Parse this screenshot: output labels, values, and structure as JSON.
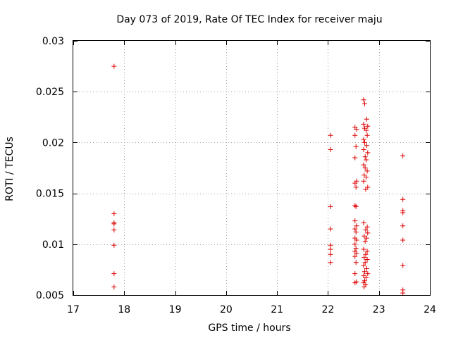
{
  "chart_data": {
    "type": "scatter",
    "title": "Day 073 of 2019, Rate Of TEC Index for receiver maju",
    "xlabel": "GPS time / hours",
    "ylabel": "ROTI / TECUs",
    "xlim": [
      17,
      24
    ],
    "ylim": [
      0.005,
      0.03
    ],
    "xticks": [
      17,
      18,
      19,
      20,
      21,
      22,
      23,
      24
    ],
    "yticks": [
      0.005,
      0.01,
      0.015,
      0.02,
      0.025,
      0.03
    ],
    "xtick_labels": [
      "17",
      "18",
      "19",
      "20",
      "21",
      "22",
      "23",
      "24"
    ],
    "ytick_labels": [
      "0.005",
      "0.01",
      "0.015",
      "0.02",
      "0.025",
      "0.03"
    ],
    "grid": true,
    "marker": "+",
    "color": "#dd0000",
    "series": [
      {
        "name": "ROTI",
        "points": [
          [
            17.8,
            0.0275
          ],
          [
            17.8,
            0.013
          ],
          [
            17.8,
            0.0121
          ],
          [
            17.8,
            0.012
          ],
          [
            17.8,
            0.0114
          ],
          [
            17.8,
            0.0099
          ],
          [
            17.8,
            0.0071
          ],
          [
            17.8,
            0.0058
          ],
          [
            22.05,
            0.0207
          ],
          [
            22.05,
            0.0193
          ],
          [
            22.05,
            0.0137
          ],
          [
            22.05,
            0.0115
          ],
          [
            22.05,
            0.0099
          ],
          [
            22.05,
            0.0095
          ],
          [
            22.05,
            0.009
          ],
          [
            22.05,
            0.0082
          ],
          [
            22.53,
            0.0215
          ],
          [
            22.56,
            0.0213
          ],
          [
            22.53,
            0.0207
          ],
          [
            22.55,
            0.0196
          ],
          [
            22.53,
            0.0185
          ],
          [
            22.56,
            0.0162
          ],
          [
            22.53,
            0.016
          ],
          [
            22.55,
            0.0156
          ],
          [
            22.53,
            0.0138
          ],
          [
            22.55,
            0.0137
          ],
          [
            22.53,
            0.0123
          ],
          [
            22.56,
            0.0118
          ],
          [
            22.53,
            0.0115
          ],
          [
            22.55,
            0.0112
          ],
          [
            22.53,
            0.0106
          ],
          [
            22.56,
            0.0104
          ],
          [
            22.53,
            0.01
          ],
          [
            22.55,
            0.0096
          ],
          [
            22.53,
            0.0093
          ],
          [
            22.56,
            0.0091
          ],
          [
            22.53,
            0.0088
          ],
          [
            22.55,
            0.0082
          ],
          [
            22.53,
            0.0071
          ],
          [
            22.56,
            0.0063
          ],
          [
            22.53,
            0.0062
          ],
          [
            22.7,
            0.0242
          ],
          [
            22.72,
            0.0238
          ],
          [
            22.76,
            0.0223
          ],
          [
            22.7,
            0.0218
          ],
          [
            22.78,
            0.0216
          ],
          [
            22.72,
            0.0214
          ],
          [
            22.75,
            0.0212
          ],
          [
            22.77,
            0.0207
          ],
          [
            22.7,
            0.0203
          ],
          [
            22.72,
            0.02
          ],
          [
            22.76,
            0.0197
          ],
          [
            22.7,
            0.0193
          ],
          [
            22.78,
            0.019
          ],
          [
            22.73,
            0.0186
          ],
          [
            22.75,
            0.0183
          ],
          [
            22.7,
            0.0178
          ],
          [
            22.73,
            0.0175
          ],
          [
            22.77,
            0.0172
          ],
          [
            22.71,
            0.0168
          ],
          [
            22.75,
            0.0166
          ],
          [
            22.7,
            0.0162
          ],
          [
            22.78,
            0.0156
          ],
          [
            22.74,
            0.0154
          ],
          [
            22.7,
            0.0121
          ],
          [
            22.77,
            0.0117
          ],
          [
            22.74,
            0.0114
          ],
          [
            22.78,
            0.0111
          ],
          [
            22.71,
            0.0108
          ],
          [
            22.76,
            0.0106
          ],
          [
            22.73,
            0.0103
          ],
          [
            22.7,
            0.0095
          ],
          [
            22.77,
            0.0093
          ],
          [
            22.74,
            0.009
          ],
          [
            22.71,
            0.0087
          ],
          [
            22.77,
            0.0085
          ],
          [
            22.73,
            0.0082
          ],
          [
            22.7,
            0.0079
          ],
          [
            22.76,
            0.0076
          ],
          [
            22.72,
            0.0073
          ],
          [
            22.78,
            0.0071
          ],
          [
            22.7,
            0.0069
          ],
          [
            22.75,
            0.0067
          ],
          [
            22.72,
            0.0064
          ],
          [
            22.7,
            0.0062
          ],
          [
            22.74,
            0.006
          ],
          [
            22.71,
            0.0058
          ],
          [
            23.47,
            0.0187
          ],
          [
            23.47,
            0.0144
          ],
          [
            23.47,
            0.0133
          ],
          [
            23.47,
            0.0131
          ],
          [
            23.47,
            0.0118
          ],
          [
            23.47,
            0.0104
          ],
          [
            23.47,
            0.0079
          ],
          [
            23.47,
            0.0055
          ],
          [
            23.47,
            0.0052
          ]
        ]
      }
    ]
  }
}
